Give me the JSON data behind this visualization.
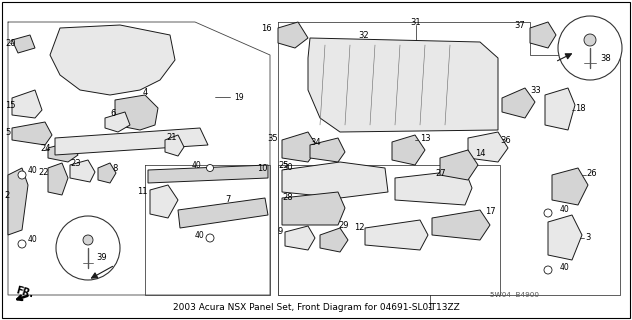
{
  "title": "2003 Acura NSX Panel Set, Front Diagram for 04691-SL0-T13ZZ",
  "bg": "#ffffff",
  "lc": "#1a1a1a",
  "tc": "#000000",
  "watermark": "5W04  B4900",
  "fs_title": 6.5,
  "fs_label": 6.0,
  "fs_small": 5.2,
  "border_lw": 0.8,
  "part_lw": 0.7,
  "leader_lw": 0.5,
  "gray_fill": "#e8e8e8",
  "mid_fill": "#d4d4d4",
  "dark_fill": "#aaaaaa",
  "white_fill": "#ffffff"
}
